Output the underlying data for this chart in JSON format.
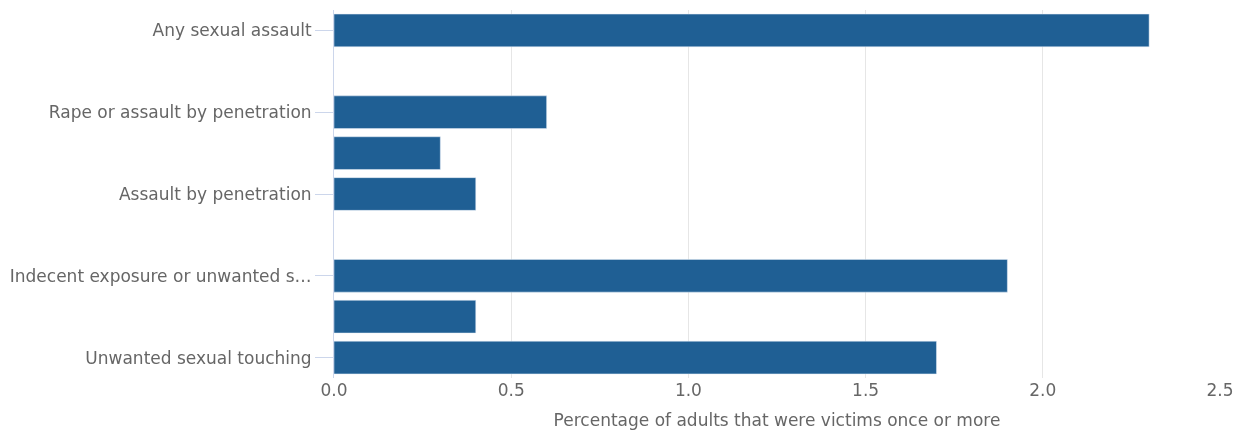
{
  "chart_data": {
    "type": "bar",
    "orientation": "horizontal",
    "categories": [
      "Any sexual assault",
      null,
      "Rape or assault by penetration",
      null,
      "Assault by penetration",
      null,
      "Indecent exposure or unwanted s…",
      null,
      "Unwanted sexual touching"
    ],
    "values": [
      2.3,
      null,
      0.6,
      0.3,
      0.4,
      null,
      1.9,
      0.4,
      1.7
    ],
    "color": "#1f5f94",
    "xlim": [
      0,
      2.5
    ],
    "xticks": [
      {
        "value": 0,
        "label": "0.0"
      },
      {
        "value": 0.5,
        "label": "0.5"
      },
      {
        "value": 1,
        "label": "1.0"
      },
      {
        "value": 1.5,
        "label": "1.5"
      },
      {
        "value": 2,
        "label": "2.0"
      },
      {
        "value": 2.5,
        "label": "2.5"
      }
    ],
    "xlabel": "Percentage of adults that were victims once or more",
    "grid": "x"
  }
}
